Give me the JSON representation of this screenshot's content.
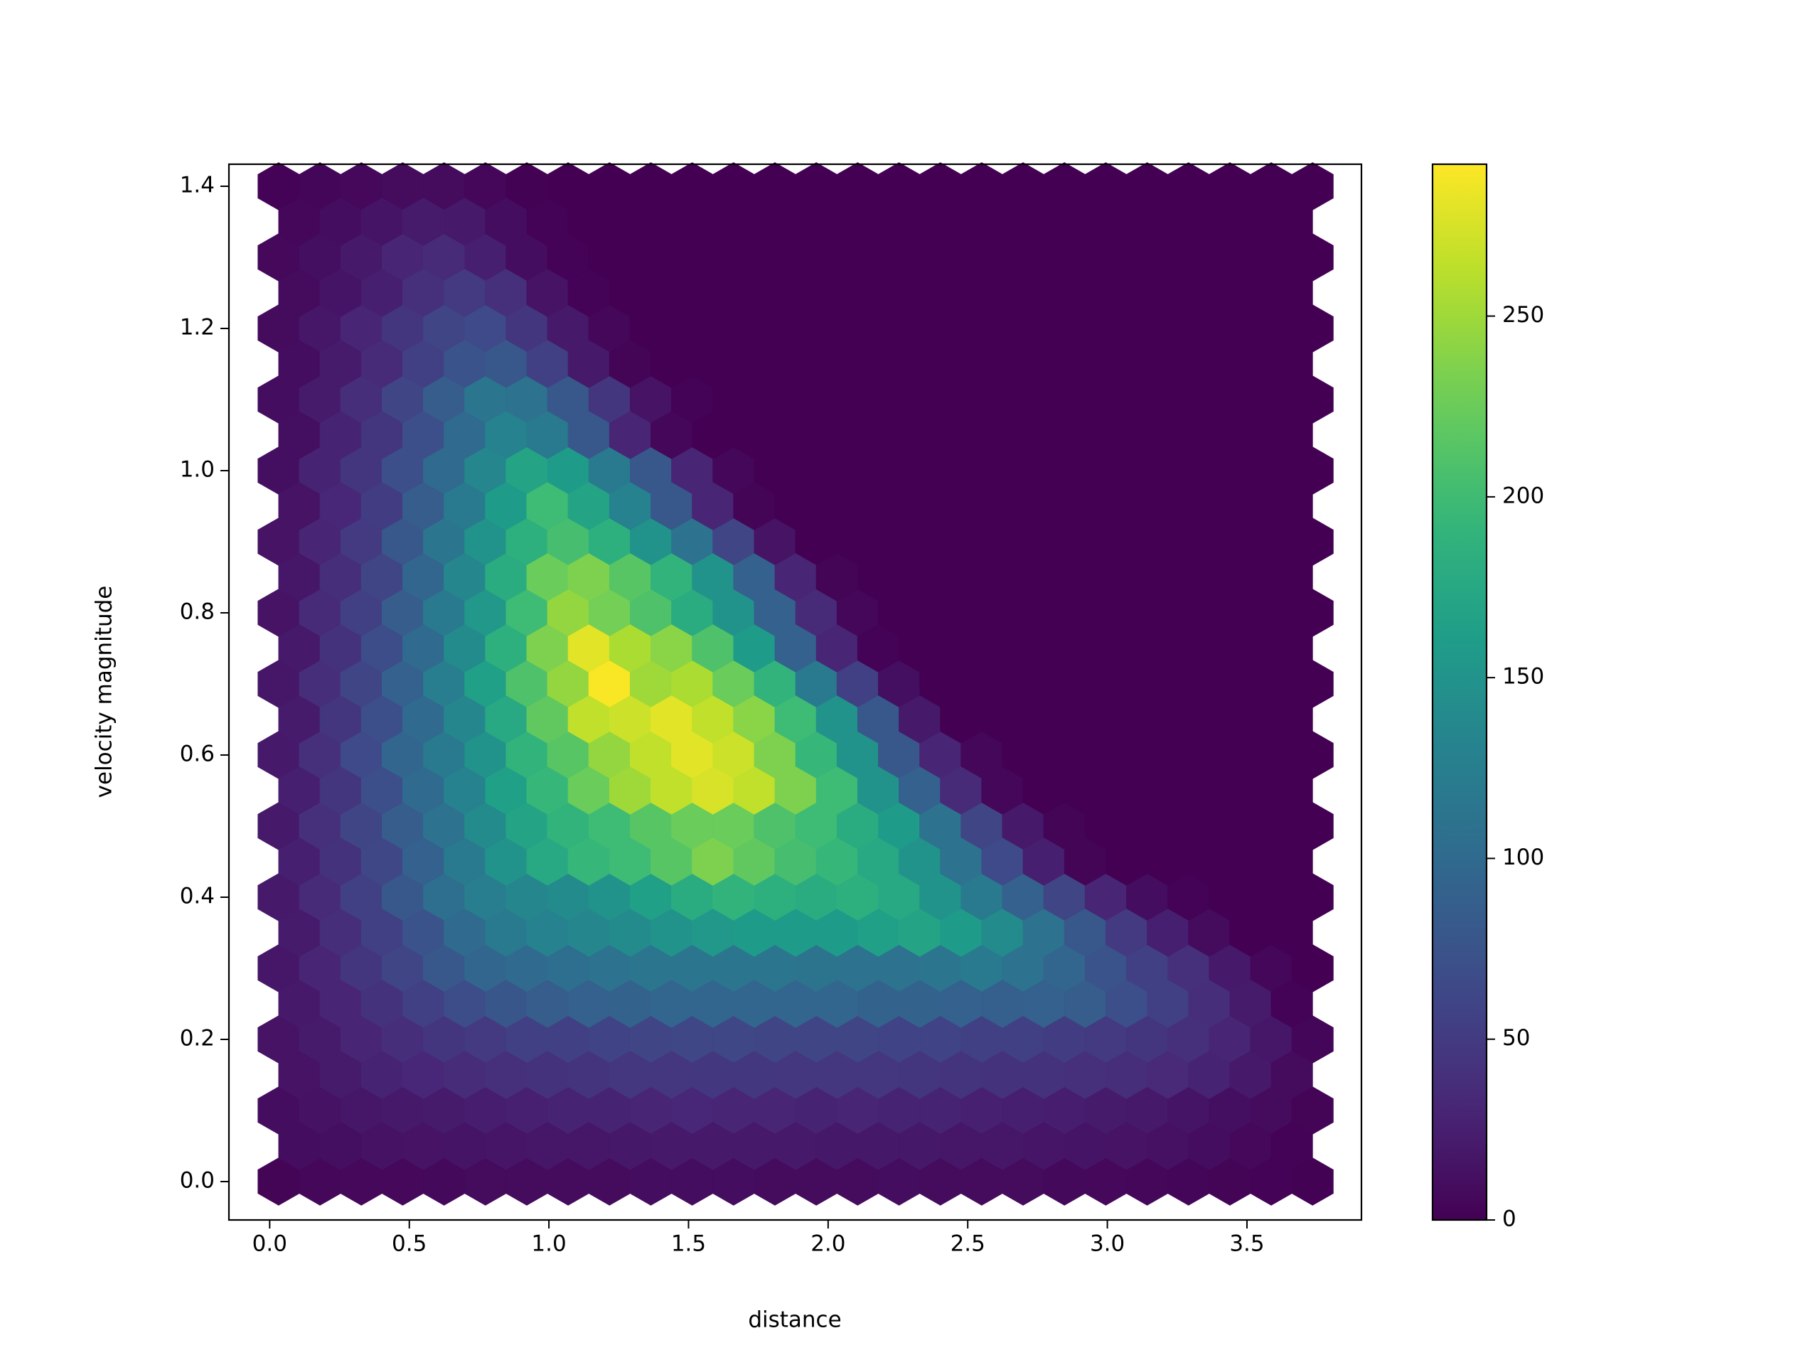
{
  "chart_data": {
    "type": "hexbin",
    "xlabel": "distance",
    "ylabel": "velocity magnitude",
    "colormap": "viridis",
    "gridsize": [
      25,
      14
    ],
    "extent": [
      0.032,
      3.735,
      0,
      1.4
    ],
    "xlim": [
      -0.146,
      3.91
    ],
    "ylim": [
      -0.054,
      1.431
    ],
    "xticks": [
      {
        "value": 0,
        "label": "0.0"
      },
      0.5,
      {
        "value": 1,
        "label": "1.0"
      },
      1.5,
      {
        "value": 2,
        "label": "2.0"
      },
      2.5,
      {
        "value": 3,
        "label": "3.0"
      },
      3.5
    ],
    "yticks": [
      {
        "value": 0,
        "label": "0.0"
      },
      0.2,
      0.4,
      0.6,
      0.8,
      {
        "value": 1,
        "label": "1.0"
      },
      1.2,
      1.4
    ],
    "clim": [
      0,
      292
    ],
    "cticks": [
      0,
      50,
      100,
      150,
      200,
      250
    ],
    "counts_main": [
      [
        3,
        5,
        6,
        6,
        7,
        8,
        8,
        9,
        9,
        10,
        10,
        10,
        9,
        9,
        9,
        10,
        9,
        8,
        8,
        7,
        6,
        5,
        4,
        3,
        2,
        1
      ],
      [
        10,
        14,
        18,
        20,
        22,
        24,
        26,
        28,
        28,
        30,
        32,
        30,
        30,
        28,
        30,
        28,
        28,
        26,
        25,
        24,
        22,
        20,
        16,
        12,
        8,
        3
      ],
      [
        15,
        22,
        30,
        38,
        45,
        50,
        55,
        55,
        58,
        60,
        62,
        62,
        60,
        60,
        60,
        58,
        58,
        55,
        55,
        52,
        50,
        45,
        40,
        30,
        18,
        4
      ],
      [
        18,
        30,
        45,
        60,
        80,
        95,
        100,
        105,
        110,
        115,
        115,
        115,
        115,
        112,
        110,
        110,
        115,
        120,
        110,
        95,
        75,
        55,
        40,
        20,
        5,
        0
      ],
      [
        20,
        35,
        55,
        80,
        105,
        125,
        135,
        140,
        150,
        165,
        180,
        190,
        185,
        180,
        185,
        175,
        150,
        120,
        90,
        60,
        30,
        10,
        2,
        0,
        0,
        0
      ],
      [
        20,
        40,
        60,
        85,
        110,
        140,
        170,
        190,
        200,
        215,
        225,
        225,
        210,
        200,
        180,
        160,
        110,
        60,
        20,
        3,
        0,
        0,
        0,
        0,
        0,
        0
      ],
      [
        20,
        40,
        65,
        95,
        120,
        150,
        190,
        215,
        245,
        265,
        280,
        270,
        235,
        195,
        150,
        80,
        30,
        5,
        0,
        0,
        0,
        0,
        0,
        0,
        0,
        0
      ],
      [
        18,
        38,
        60,
        90,
        125,
        165,
        210,
        245,
        290,
        250,
        255,
        225,
        190,
        120,
        55,
        12,
        0,
        0,
        0,
        0,
        0,
        0,
        0,
        0,
        0,
        0
      ],
      [
        15,
        35,
        55,
        85,
        120,
        155,
        200,
        245,
        230,
        210,
        180,
        150,
        90,
        35,
        5,
        0,
        0,
        0,
        0,
        0,
        0,
        0,
        0,
        0,
        0,
        0
      ],
      [
        15,
        30,
        50,
        80,
        115,
        150,
        185,
        205,
        185,
        150,
        110,
        60,
        15,
        0,
        0,
        0,
        0,
        0,
        0,
        0,
        0,
        0,
        0,
        0,
        0,
        0
      ],
      [
        12,
        28,
        45,
        70,
        100,
        135,
        170,
        160,
        120,
        80,
        30,
        5,
        0,
        0,
        0,
        0,
        0,
        0,
        0,
        0,
        0,
        0,
        0,
        0,
        0,
        0
      ],
      [
        10,
        22,
        38,
        60,
        85,
        115,
        110,
        80,
        45,
        15,
        2,
        0,
        0,
        0,
        0,
        0,
        0,
        0,
        0,
        0,
        0,
        0,
        0,
        0,
        0,
        0
      ],
      [
        8,
        18,
        30,
        45,
        60,
        65,
        45,
        20,
        5,
        0,
        0,
        0,
        0,
        0,
        0,
        0,
        0,
        0,
        0,
        0,
        0,
        0,
        0,
        0,
        0,
        0
      ],
      [
        6,
        12,
        20,
        30,
        35,
        25,
        10,
        2,
        0,
        0,
        0,
        0,
        0,
        0,
        0,
        0,
        0,
        0,
        0,
        0,
        0,
        0,
        0,
        0,
        0,
        0
      ],
      [
        2,
        4,
        6,
        8,
        8,
        5,
        1,
        0,
        0,
        0,
        0,
        0,
        0,
        0,
        0,
        0,
        0,
        0,
        0,
        0,
        0,
        0,
        0,
        0,
        0,
        0
      ]
    ],
    "counts_offset": [
      [
        10,
        12,
        14,
        15,
        16,
        17,
        18,
        18,
        19,
        20,
        20,
        20,
        20,
        19,
        19,
        19,
        18,
        18,
        17,
        16,
        15,
        13,
        10,
        6,
        2
      ],
      [
        15,
        22,
        28,
        32,
        36,
        40,
        42,
        44,
        46,
        46,
        48,
        48,
        47,
        46,
        46,
        45,
        44,
        42,
        42,
        40,
        38,
        34,
        28,
        20,
        8
      ],
      [
        20,
        30,
        42,
        55,
        68,
        78,
        85,
        90,
        92,
        95,
        95,
        95,
        95,
        95,
        92,
        92,
        90,
        88,
        90,
        85,
        70,
        55,
        38,
        22,
        2
      ],
      [
        22,
        38,
        55,
        75,
        100,
        120,
        130,
        135,
        140,
        150,
        155,
        160,
        160,
        160,
        165,
        170,
        160,
        140,
        110,
        80,
        50,
        25,
        8,
        0,
        0
      ],
      [
        25,
        42,
        62,
        90,
        120,
        150,
        175,
        195,
        200,
        215,
        235,
        220,
        205,
        195,
        175,
        150,
        110,
        65,
        25,
        3,
        0,
        0,
        0,
        0,
        0
      ],
      [
        25,
        45,
        70,
        100,
        130,
        165,
        195,
        225,
        250,
        265,
        275,
        265,
        235,
        200,
        150,
        90,
        35,
        5,
        0,
        0,
        0,
        0,
        0,
        0,
        0
      ],
      [
        22,
        45,
        70,
        100,
        135,
        175,
        220,
        265,
        270,
        280,
        265,
        240,
        200,
        150,
        80,
        20,
        0,
        0,
        0,
        0,
        0,
        0,
        0,
        0,
        0
      ],
      [
        20,
        42,
        68,
        100,
        140,
        185,
        235,
        280,
        255,
        240,
        210,
        160,
        90,
        30,
        2,
        0,
        0,
        0,
        0,
        0,
        0,
        0,
        0,
        0,
        0
      ],
      [
        18,
        38,
        60,
        95,
        135,
        180,
        225,
        235,
        215,
        190,
        150,
        90,
        30,
        3,
        0,
        0,
        0,
        0,
        0,
        0,
        0,
        0,
        0,
        0,
        0
      ],
      [
        15,
        32,
        52,
        85,
        120,
        160,
        200,
        170,
        130,
        80,
        30,
        3,
        0,
        0,
        0,
        0,
        0,
        0,
        0,
        0,
        0,
        0,
        0,
        0,
        0
      ],
      [
        12,
        28,
        45,
        70,
        100,
        130,
        120,
        80,
        30,
        5,
        0,
        0,
        0,
        0,
        0,
        0,
        0,
        0,
        0,
        0,
        0,
        0,
        0,
        0,
        0
      ],
      [
        10,
        22,
        35,
        55,
        75,
        80,
        55,
        20,
        3,
        0,
        0,
        0,
        0,
        0,
        0,
        0,
        0,
        0,
        0,
        0,
        0,
        0,
        0,
        0,
        0
      ],
      [
        8,
        16,
        25,
        40,
        50,
        40,
        15,
        2,
        0,
        0,
        0,
        0,
        0,
        0,
        0,
        0,
        0,
        0,
        0,
        0,
        0,
        0,
        0,
        0,
        0
      ],
      [
        5,
        10,
        16,
        22,
        20,
        10,
        2,
        0,
        0,
        0,
        0,
        0,
        0,
        0,
        0,
        0,
        0,
        0,
        0,
        0,
        0,
        0,
        0,
        0,
        0
      ]
    ]
  }
}
